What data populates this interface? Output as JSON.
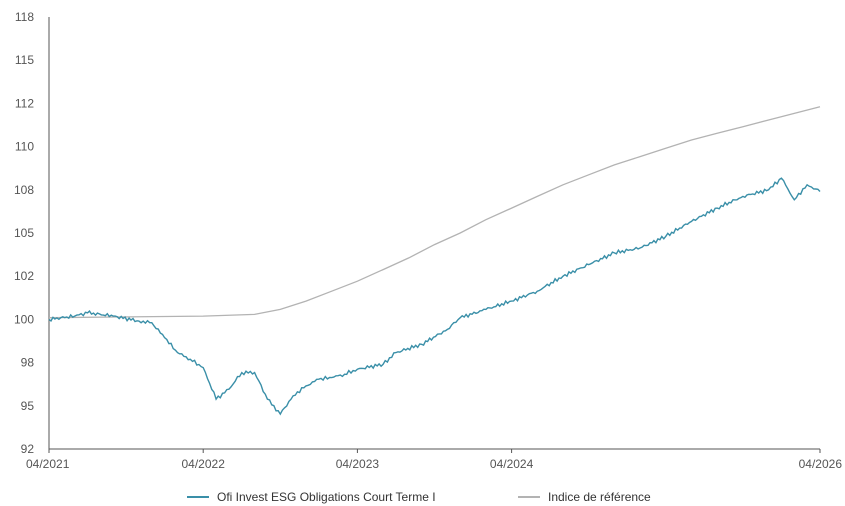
{
  "chart_data": {
    "type": "line",
    "xlim": [
      "04/2021",
      "04/2026"
    ],
    "ylim": [
      92,
      118
    ],
    "x_ticks": [
      "04/2021",
      "04/2022",
      "04/2023",
      "04/2024",
      "04/2026"
    ],
    "y_ticks": [
      "118",
      "115",
      "112",
      "110",
      "108",
      "105",
      "102",
      "100",
      "98",
      "95",
      "92"
    ],
    "y_tick_values": [
      118,
      115.4,
      112.8,
      110.2,
      107.6,
      105,
      102.4,
      99.8,
      97.2,
      94.6,
      92
    ],
    "grid": false,
    "legend_position": "bottom",
    "colors": {
      "fund": "#3a8fa8",
      "benchmark": "#b3b3b3",
      "axis": "#555555"
    },
    "series": [
      {
        "name": "Ofi Invest ESG Obligations Court Terme I",
        "points": [
          [
            "04/2021",
            99.8
          ],
          [
            "06/2021",
            100.0
          ],
          [
            "07/2021",
            100.2
          ],
          [
            "09/2021",
            100.0
          ],
          [
            "11/2021",
            99.7
          ],
          [
            "12/2021",
            99.6
          ],
          [
            "01/2022",
            98.7
          ],
          [
            "02/2022",
            97.8
          ],
          [
            "03/2022",
            97.4
          ],
          [
            "04/2022",
            96.9
          ],
          [
            "05/2022",
            95.0
          ],
          [
            "06/2022",
            95.6
          ],
          [
            "07/2022",
            96.6
          ],
          [
            "08/2022",
            96.6
          ],
          [
            "09/2022",
            95.0
          ],
          [
            "10/2022",
            94.1
          ],
          [
            "11/2022",
            95.2
          ],
          [
            "12/2022",
            95.8
          ],
          [
            "01/2023",
            96.2
          ],
          [
            "02/2023",
            96.3
          ],
          [
            "03/2023",
            96.5
          ],
          [
            "04/2023",
            96.8
          ],
          [
            "06/2023",
            97.1
          ],
          [
            "07/2023",
            97.8
          ],
          [
            "09/2023",
            98.3
          ],
          [
            "11/2023",
            99.2
          ],
          [
            "12/2023",
            99.9
          ],
          [
            "02/2024",
            100.4
          ],
          [
            "04/2024",
            100.9
          ],
          [
            "06/2024",
            101.5
          ],
          [
            "08/2024",
            102.4
          ],
          [
            "10/2024",
            103.1
          ],
          [
            "12/2024",
            103.8
          ],
          [
            "02/2025",
            104.1
          ],
          [
            "04/2025",
            104.8
          ],
          [
            "06/2025",
            105.7
          ],
          [
            "08/2025",
            106.5
          ],
          [
            "10/2025",
            107.2
          ],
          [
            "12/2025",
            107.6
          ],
          [
            "01/2026",
            108.3
          ],
          [
            "02/2026",
            107.0
          ],
          [
            "03/2026",
            107.9
          ],
          [
            "04/2026",
            107.5
          ]
        ]
      },
      {
        "name": "Indice de référence",
        "points": [
          [
            "04/2021",
            99.9
          ],
          [
            "04/2022",
            100.0
          ],
          [
            "08/2022",
            100.1
          ],
          [
            "10/2022",
            100.4
          ],
          [
            "12/2022",
            100.9
          ],
          [
            "02/2023",
            101.5
          ],
          [
            "04/2023",
            102.1
          ],
          [
            "06/2023",
            102.8
          ],
          [
            "08/2023",
            103.5
          ],
          [
            "10/2023",
            104.3
          ],
          [
            "12/2023",
            105.0
          ],
          [
            "02/2024",
            105.8
          ],
          [
            "04/2024",
            106.5
          ],
          [
            "06/2024",
            107.2
          ],
          [
            "08/2024",
            107.9
          ],
          [
            "10/2024",
            108.5
          ],
          [
            "12/2024",
            109.1
          ],
          [
            "02/2025",
            109.6
          ],
          [
            "04/2025",
            110.1
          ],
          [
            "06/2025",
            110.6
          ],
          [
            "08/2025",
            111.0
          ],
          [
            "10/2025",
            111.4
          ],
          [
            "12/2025",
            111.8
          ],
          [
            "02/2026",
            112.2
          ],
          [
            "04/2026",
            112.6
          ]
        ]
      }
    ]
  }
}
